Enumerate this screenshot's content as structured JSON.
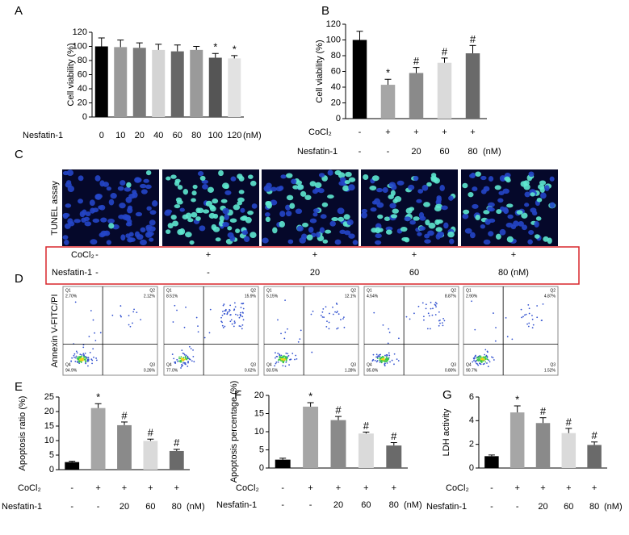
{
  "chart_data": [
    {
      "type": "bar",
      "label": "A",
      "ylabel": "Cell viability (%)",
      "xlabel": "Nesfatin-1",
      "unit": "(nM)",
      "categories": [
        "0",
        "10",
        "20",
        "40",
        "60",
        "80",
        "100",
        "120"
      ],
      "values": [
        100,
        99,
        98,
        95,
        93,
        95,
        84,
        83
      ],
      "errors": [
        12,
        10,
        7,
        8,
        9,
        5,
        6,
        4
      ],
      "annotations": [
        null,
        null,
        null,
        null,
        null,
        null,
        "*",
        "*"
      ],
      "colors": [
        "#000000",
        "#9a9a9a",
        "#7a7a7a",
        "#d4d4d4",
        "#676767",
        "#9a9a9a",
        "#555555",
        "#e2e2e2"
      ],
      "ylim": [
        0,
        120
      ],
      "yticks": [
        0,
        20,
        40,
        60,
        80,
        100,
        120
      ]
    },
    {
      "type": "bar",
      "label": "B",
      "ylabel": "Cell viability (%)",
      "unit": "(nM)",
      "rows": [
        {
          "label": "CoCl₂",
          "values": [
            "-",
            "+",
            "+",
            "+",
            "+"
          ]
        },
        {
          "label": "Nesfatin-1",
          "values": [
            "-",
            "-",
            "20",
            "60",
            "80"
          ]
        }
      ],
      "values": [
        100,
        43,
        58,
        71,
        83
      ],
      "errors": [
        11,
        7,
        7,
        6,
        10
      ],
      "annotations": [
        null,
        "*",
        "#",
        "#",
        "#"
      ],
      "colors": [
        "#000000",
        "#a6a6a6",
        "#8a8a8a",
        "#dadada",
        "#6a6a6a"
      ],
      "ylim": [
        0,
        120
      ],
      "yticks": [
        0,
        20,
        40,
        60,
        80,
        100,
        120
      ]
    },
    {
      "type": "bar",
      "label": "E",
      "ylabel": "Apoptosis ratio (%)",
      "unit": "(nM)",
      "rows": [
        {
          "label": "CoCl₂",
          "values": [
            "-",
            "+",
            "+",
            "+",
            "+"
          ]
        },
        {
          "label": "Nesfatin-1",
          "values": [
            "-",
            "-",
            "20",
            "60",
            "80"
          ]
        }
      ],
      "values": [
        2.6,
        21.2,
        15.3,
        9.9,
        6.4
      ],
      "errors": [
        0.3,
        1.5,
        1.1,
        0.6,
        0.6
      ],
      "annotations": [
        null,
        "*",
        "#",
        "#",
        "#"
      ],
      "colors": [
        "#000000",
        "#a6a6a6",
        "#8a8a8a",
        "#dadada",
        "#6a6a6a"
      ],
      "ylim": [
        0,
        25
      ],
      "yticks": [
        0,
        5,
        10,
        15,
        20,
        25
      ]
    },
    {
      "type": "bar",
      "label": "F",
      "ylabel": "Apoptosis percentage (%)",
      "unit": "(nM)",
      "rows": [
        {
          "label": "CoCl₂",
          "values": [
            "-",
            "+",
            "+",
            "+",
            "+"
          ]
        },
        {
          "label": "Nesfatin-1",
          "values": [
            "-",
            "-",
            "20",
            "60",
            "80"
          ]
        }
      ],
      "values": [
        2.3,
        16.9,
        13.2,
        9.5,
        6.2
      ],
      "errors": [
        0.4,
        1.1,
        1.0,
        0.4,
        0.8
      ],
      "annotations": [
        null,
        "*",
        "#",
        "#",
        "#"
      ],
      "colors": [
        "#000000",
        "#a6a6a6",
        "#8a8a8a",
        "#dadada",
        "#6a6a6a"
      ],
      "ylim": [
        0,
        20
      ],
      "yticks": [
        0,
        5,
        10,
        15,
        20
      ]
    },
    {
      "type": "bar",
      "label": "G",
      "ylabel": "LDH activity",
      "unit": "(nM)",
      "rows": [
        {
          "label": "CoCl₂",
          "values": [
            "-",
            "+",
            "+",
            "+",
            "+"
          ]
        },
        {
          "label": "Nesfatin-1",
          "values": [
            "-",
            "-",
            "20",
            "60",
            "80"
          ]
        }
      ],
      "values": [
        1.0,
        4.7,
        3.8,
        2.95,
        1.95
      ],
      "errors": [
        0.1,
        0.55,
        0.45,
        0.4,
        0.25
      ],
      "annotations": [
        null,
        "*",
        "#",
        "#",
        "#"
      ],
      "colors": [
        "#000000",
        "#a6a6a6",
        "#8a8a8a",
        "#dadada",
        "#6a6a6a"
      ],
      "ylim": [
        0,
        6
      ],
      "yticks": [
        0,
        2,
        4,
        6
      ]
    }
  ],
  "tunel": {
    "label": "C",
    "ylabel": "TUNEL assay",
    "conditions": [
      {
        "label": "CoCl₂",
        "values": [
          "-",
          "+",
          "+",
          "+",
          "+"
        ]
      },
      {
        "label": "Nesfatin-1",
        "values": [
          "-",
          "-",
          "20",
          "60",
          "80 (nM)"
        ]
      }
    ]
  },
  "flow": {
    "label": "D",
    "ylabel": "Annexin V-FITC/PI",
    "quadrants": [
      "Q1",
      "Q2",
      "Q3",
      "Q4"
    ],
    "plots": [
      [
        "2.70%",
        "2.12%",
        "0.26%",
        "94.9%"
      ],
      [
        "8.51%",
        "15.9%",
        "0.62%",
        "77.0%"
      ],
      [
        "5.15%",
        "12.1%",
        "1.28%",
        "83.5%"
      ],
      [
        "4.54%",
        "8.87%",
        "0.80%",
        "85.8%"
      ],
      [
        "2.90%",
        "4.87%",
        "1.52%",
        "90.7%"
      ]
    ]
  }
}
